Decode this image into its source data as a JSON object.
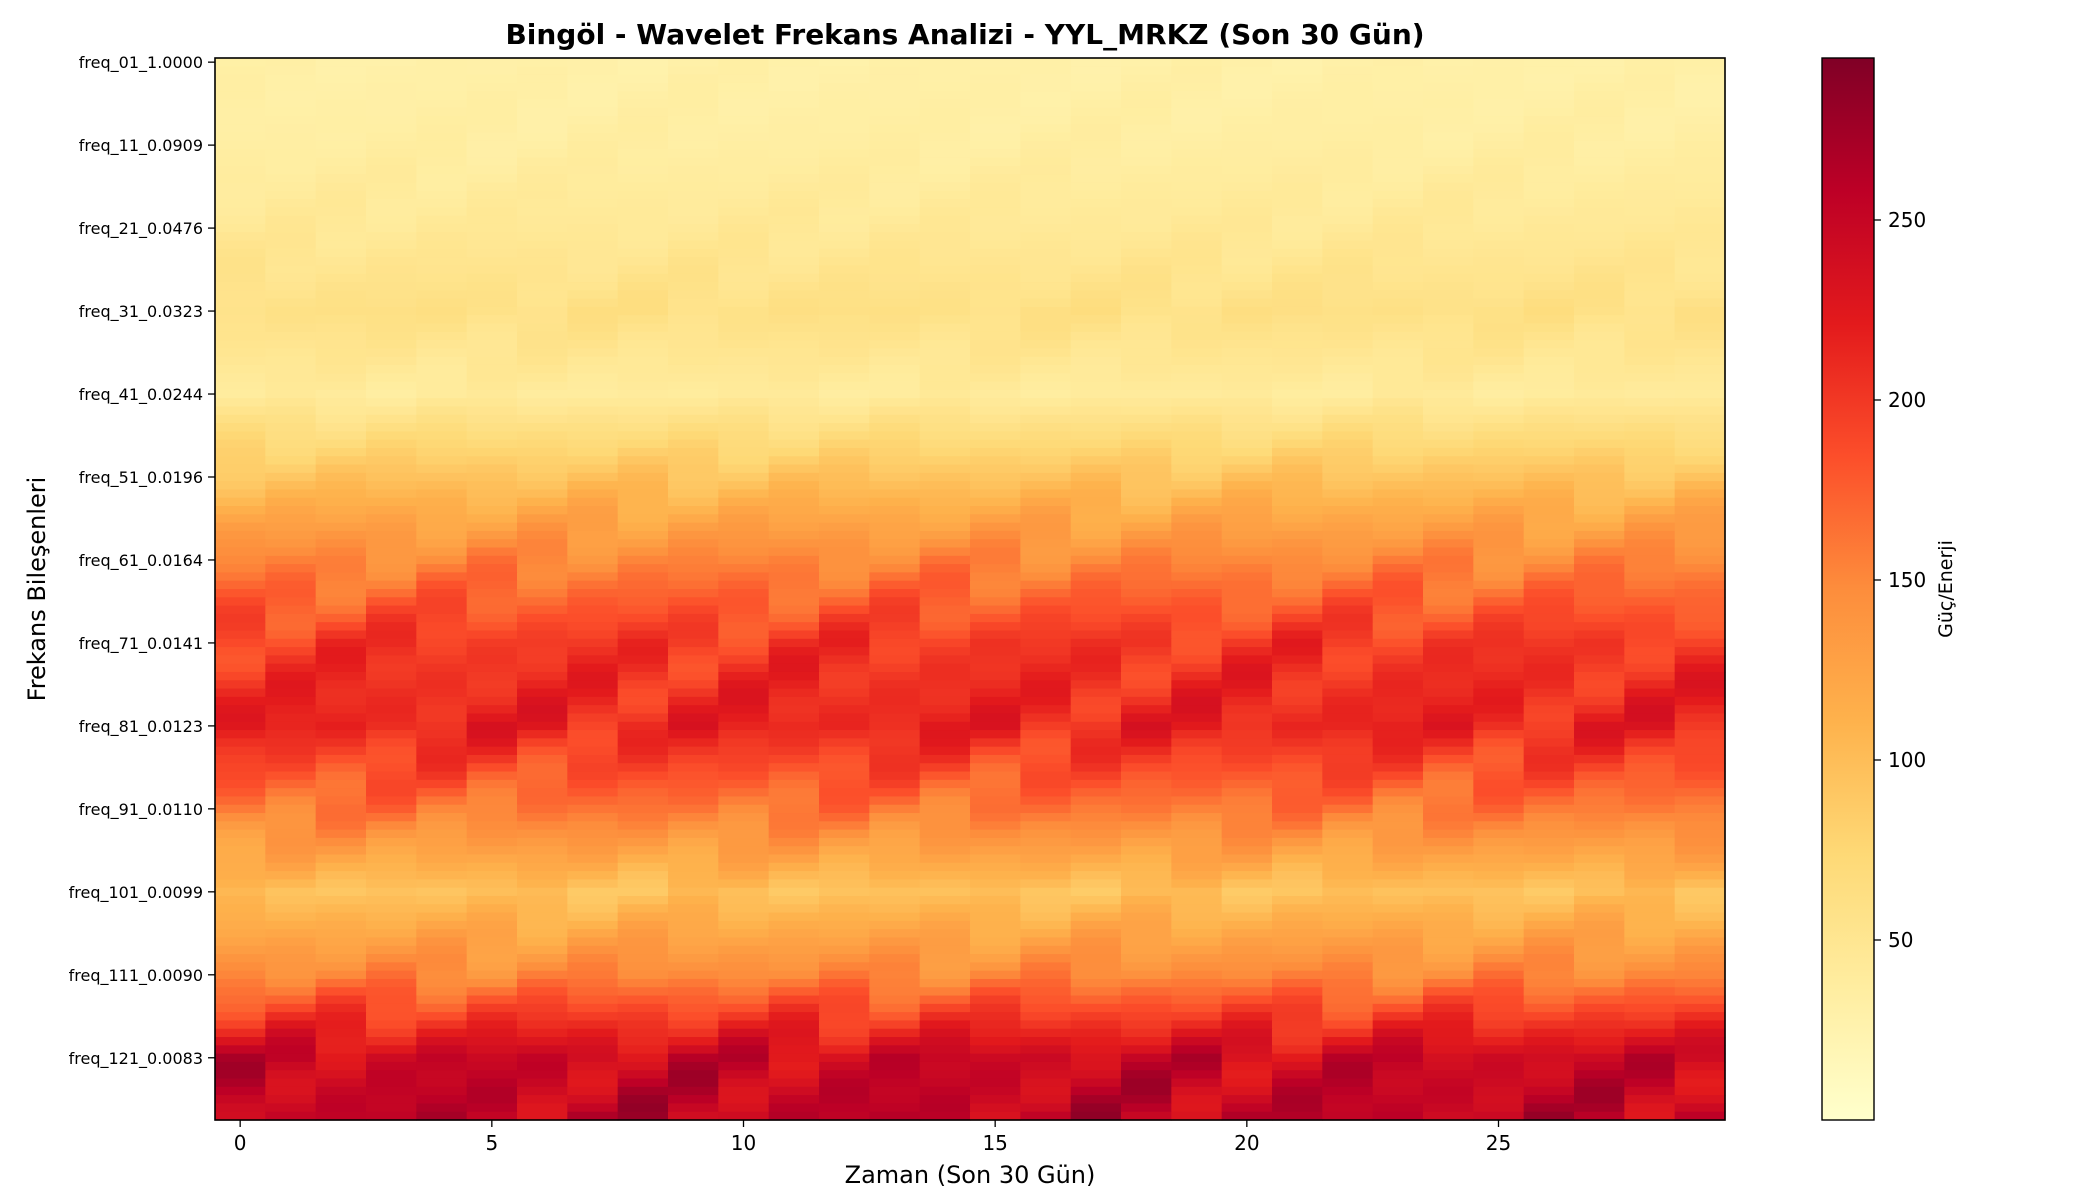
{
  "chart_data": {
    "type": "heatmap",
    "title": "Bingöl - Wavelet Frekans Analizi - YYL_MRKZ (Son 30 Gün)",
    "xlabel": "Zaman (Son 30 Gün)",
    "ylabel": "Frekans Bileşenleri",
    "colorbar_label": "Güç/Enerji",
    "colormap": "YlOrRd",
    "colormap_stops": [
      "#ffffcc",
      "#ffeda0",
      "#fed976",
      "#feb24c",
      "#fd8d3c",
      "#fc4e2a",
      "#e31a1c",
      "#bd0026",
      "#800026"
    ],
    "x_range": [
      0,
      29
    ],
    "x_ticks": [
      0,
      5,
      10,
      15,
      20,
      25
    ],
    "y_range": [
      1,
      128
    ],
    "y_tick_rows": [
      1,
      11,
      21,
      31,
      41,
      51,
      61,
      71,
      81,
      91,
      101,
      111,
      121
    ],
    "y_tick_labels": [
      "freq_01_1.0000",
      "freq_11_0.0909",
      "freq_21_0.0476",
      "freq_31_0.0323",
      "freq_41_0.0244",
      "freq_51_0.0196",
      "freq_61_0.0164",
      "freq_71_0.0141",
      "freq_81_0.0123",
      "freq_91_0.0110",
      "freq_101_0.0099",
      "freq_111_0.0090",
      "freq_121_0.0083"
    ],
    "color_range": [
      0,
      295
    ],
    "colorbar_ticks": [
      50,
      100,
      150,
      200,
      250
    ],
    "row_profile": [
      {
        "row": 1,
        "value": 30
      },
      {
        "row": 11,
        "value": 35
      },
      {
        "row": 21,
        "value": 45
      },
      {
        "row": 31,
        "value": 60
      },
      {
        "row": 41,
        "value": 40
      },
      {
        "row": 51,
        "value": 95
      },
      {
        "row": 61,
        "value": 150
      },
      {
        "row": 71,
        "value": 200
      },
      {
        "row": 81,
        "value": 215
      },
      {
        "row": 91,
        "value": 160
      },
      {
        "row": 101,
        "value": 95
      },
      {
        "row": 111,
        "value": 150
      },
      {
        "row": 121,
        "value": 245
      },
      {
        "row": 128,
        "value": 255
      }
    ]
  }
}
